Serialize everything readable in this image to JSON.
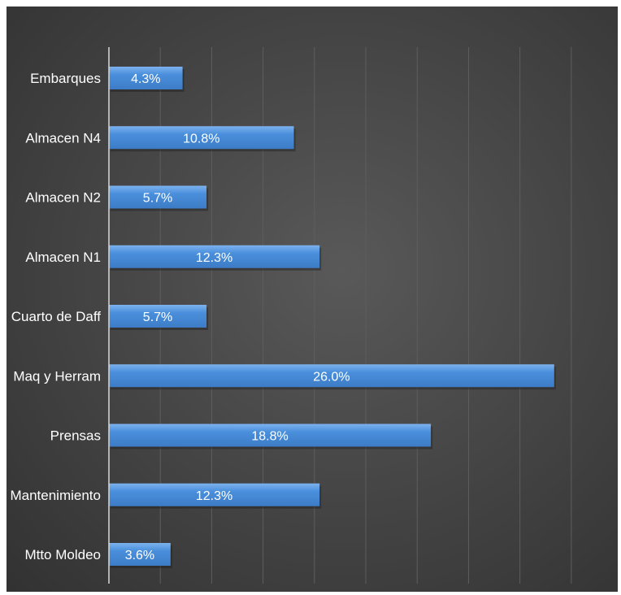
{
  "chart_data": {
    "type": "bar",
    "orientation": "horizontal",
    "categories": [
      "Embarques",
      "Almacen N4",
      "Almacen N2",
      "Almacen N1",
      "Cuarto de Daff",
      "Maq y Herram",
      "Prensas",
      "Mantenimiento",
      "Mtto Moldeo"
    ],
    "values": [
      4.3,
      10.8,
      5.7,
      12.3,
      5.7,
      26.0,
      18.8,
      12.3,
      3.6
    ],
    "data_labels": [
      "4.3%",
      "10.8%",
      "5.7%",
      "12.3%",
      "5.7%",
      "26.0%",
      "18.8%",
      "12.3%",
      "3.6%"
    ],
    "title": "",
    "xlabel": "",
    "ylabel": "",
    "xlim": [
      0,
      29
    ],
    "grid": true,
    "legend": "none",
    "colors": {
      "bar": "#4a8fdc",
      "bar_top": "#7db2ee",
      "background": "#474747",
      "gridline": "#5e5e5e",
      "axis": "#d9d9d9",
      "text": "#ffffff"
    }
  }
}
